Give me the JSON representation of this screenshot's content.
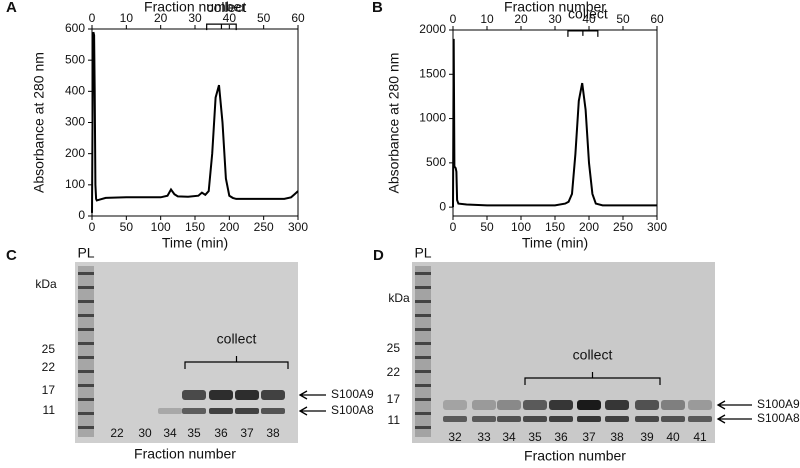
{
  "chart_data": [
    {
      "type": "line",
      "panel": "A",
      "x_label": "Time (min)",
      "x2_label": "Fraction number",
      "y_label": "Absorbance at 280 nm",
      "xlim": [
        0,
        300
      ],
      "xticks": [
        0,
        50,
        100,
        150,
        200,
        250,
        300
      ],
      "x2lim": [
        0,
        60
      ],
      "x2ticks": [
        0,
        10,
        20,
        30,
        40,
        50,
        60
      ],
      "ylim": [
        0,
        600
      ],
      "yticks": [
        0,
        100,
        200,
        300,
        400,
        500,
        600
      ],
      "annotation": {
        "text": "collect",
        "range": [
          167,
          210
        ]
      },
      "series": [
        {
          "color": "#000000",
          "x": [
            0,
            1,
            2,
            3,
            4,
            5,
            6,
            7,
            10,
            20,
            50,
            100,
            110,
            115,
            120,
            125,
            140,
            155,
            160,
            165,
            170,
            175,
            180,
            185,
            190,
            195,
            200,
            205,
            210,
            220,
            250,
            280,
            290,
            295,
            300
          ],
          "values": [
            10,
            400,
            590,
            580,
            400,
            100,
            55,
            50,
            52,
            58,
            60,
            60,
            65,
            85,
            70,
            63,
            62,
            65,
            75,
            68,
            80,
            200,
            380,
            420,
            300,
            120,
            65,
            58,
            55,
            55,
            55,
            55,
            60,
            70,
            80
          ]
        }
      ]
    },
    {
      "type": "line",
      "panel": "B",
      "x_label": "Time (min)",
      "x2_label": "Fraction number",
      "y_label": "Absorbance at 280 nm",
      "xlim": [
        0,
        300
      ],
      "xticks": [
        0,
        50,
        100,
        150,
        200,
        250,
        300
      ],
      "x2lim": [
        0,
        60
      ],
      "x2ticks": [
        0,
        10,
        20,
        30,
        40,
        50,
        60
      ],
      "ylim": [
        -100,
        2000
      ],
      "yticks": [
        0,
        500,
        1000,
        1500,
        2000
      ],
      "annotation": {
        "text": "collect",
        "range": [
          169,
          213
        ]
      },
      "series": [
        {
          "color": "#000000",
          "x": [
            0,
            1,
            2,
            4,
            5,
            6,
            8,
            20,
            50,
            100,
            150,
            165,
            170,
            175,
            180,
            185,
            190,
            195,
            200,
            205,
            210,
            220,
            250,
            300
          ],
          "values": [
            0,
            1900,
            460,
            440,
            400,
            80,
            40,
            30,
            20,
            20,
            20,
            40,
            60,
            150,
            600,
            1200,
            1400,
            1100,
            500,
            150,
            40,
            20,
            20,
            20
          ]
        }
      ]
    }
  ],
  "gels": [
    {
      "panel": "C",
      "ladder": "PL",
      "unit": "kDa",
      "markers": [
        "25",
        "22",
        "17",
        "11"
      ],
      "lanes": [
        "22",
        "30",
        "34",
        "35",
        "36",
        "37",
        "38"
      ],
      "collect": "collect",
      "bands": [
        "S100A9",
        "S100A8"
      ],
      "x_label": "Fraction number"
    },
    {
      "panel": "D",
      "ladder": "PL",
      "unit": "kDa",
      "markers": [
        "25",
        "22",
        "17",
        "11"
      ],
      "lanes": [
        "32",
        "33",
        "34",
        "35",
        "36",
        "37",
        "38",
        "39",
        "40",
        "41"
      ],
      "collect": "collect",
      "bands": [
        "S100A9",
        "S100A8"
      ],
      "x_label": "Fraction number"
    }
  ]
}
